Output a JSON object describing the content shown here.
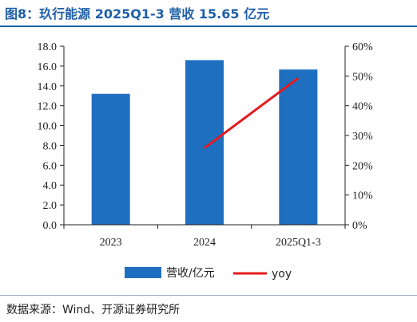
{
  "header": {
    "title": "图8：玖行能源 2025Q1-3 营收 15.65 亿元"
  },
  "footer": {
    "source": "数据来源：Wind、开源证券研究所"
  },
  "colors": {
    "bar": "#1f6fc0",
    "line": "#e41a1c",
    "title": "#1f5fa8"
  },
  "chart_data": {
    "type": "bar",
    "title": "图8：玖行能源 2025Q1-3 营收 15.65 亿元",
    "categories": [
      "2023",
      "2024",
      "2025Q1-3"
    ],
    "series": [
      {
        "name": "营收/亿元",
        "type": "bar",
        "axis": "left",
        "values": [
          13.2,
          16.6,
          15.65
        ]
      },
      {
        "name": "yoy",
        "type": "line",
        "axis": "right",
        "values": [
          null,
          25.8,
          49.3
        ]
      }
    ],
    "ylim": [
      0,
      18
    ],
    "yticks": [
      "0.0",
      "2.0",
      "4.0",
      "6.0",
      "8.0",
      "10.0",
      "12.0",
      "14.0",
      "16.0",
      "18.0"
    ],
    "y2lim": [
      0,
      60
    ],
    "y2ticks": [
      "0%",
      "10%",
      "20%",
      "30%",
      "40%",
      "50%",
      "60%"
    ],
    "grid": false,
    "legend": "bottom-center"
  }
}
